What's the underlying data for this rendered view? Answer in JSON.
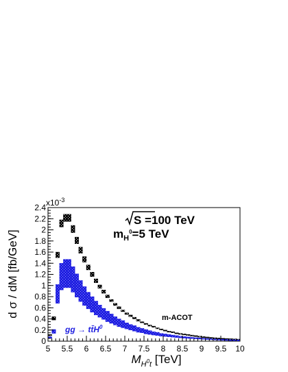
{
  "chart_data": {
    "type": "bar",
    "energy_label": "S =100 TeV",
    "mass_label_main": "m",
    "mass_label_sub": "H",
    "mass_label_sup": "0",
    "mass_label_rest": "=5 TeV",
    "exponent_label": "x10",
    "exponent_power": "-3",
    "ylabel": "d σ / dM [fb/GeV]",
    "xlabel_main": "M",
    "xlabel_sub": "H",
    "xlabel_subsup": "0",
    "xlabel_subt": "t",
    "xlabel_unit": " [TeV]",
    "xlim": [
      5,
      10
    ],
    "ylim": [
      0,
      2.4
    ],
    "y_scale_factor": 0.001,
    "x_ticks": [
      "5",
      "5.5",
      "6",
      "6.5",
      "7",
      "7.5",
      "8",
      "8.5",
      "9",
      "9.5",
      "10"
    ],
    "y_ticks": [
      "0",
      "0.2",
      "0.4",
      "0.6",
      "0.8",
      "1",
      "1.2",
      "1.4",
      "1.6",
      "1.8",
      "2",
      "2.2",
      "2.4"
    ],
    "bin_width": 0.1,
    "x": [
      5.05,
      5.15,
      5.25,
      5.35,
      5.45,
      5.55,
      5.65,
      5.75,
      5.85,
      5.95,
      6.05,
      6.15,
      6.25,
      6.35,
      6.45,
      6.55,
      6.65,
      6.75,
      6.85,
      6.95,
      7.05,
      7.15,
      7.25,
      7.35,
      7.45,
      7.55,
      7.65,
      7.75,
      7.85,
      7.95,
      8.05,
      8.15,
      8.25,
      8.35,
      8.45,
      8.55,
      8.65,
      8.75,
      8.85,
      8.95,
      9.05,
      9.15,
      9.25,
      9.35,
      9.45,
      9.55,
      9.65,
      9.75,
      9.85,
      9.95
    ],
    "series": [
      {
        "name": "m-ACOT",
        "color": "#000000",
        "low": [
          0.1,
          0.38,
          1.5,
          2.05,
          2.15,
          2.15,
          1.95,
          1.75,
          1.58,
          1.42,
          1.28,
          1.16,
          1.05,
          0.95,
          0.86,
          0.78,
          0.71,
          0.64,
          0.58,
          0.53,
          0.48,
          0.44,
          0.4,
          0.36,
          0.33,
          0.3,
          0.27,
          0.25,
          0.23,
          0.21,
          0.19,
          0.17,
          0.16,
          0.14,
          0.13,
          0.12,
          0.11,
          0.1,
          0.09,
          0.08,
          0.075,
          0.068,
          0.062,
          0.057,
          0.052,
          0.048,
          0.044,
          0.04,
          0.037,
          0.034
        ],
        "high": [
          0.12,
          0.44,
          1.6,
          2.18,
          2.28,
          2.28,
          2.08,
          1.87,
          1.69,
          1.52,
          1.37,
          1.24,
          1.12,
          1.01,
          0.92,
          0.83,
          0.75,
          0.68,
          0.62,
          0.56,
          0.51,
          0.47,
          0.43,
          0.39,
          0.35,
          0.32,
          0.29,
          0.27,
          0.24,
          0.22,
          0.2,
          0.18,
          0.17,
          0.15,
          0.14,
          0.13,
          0.12,
          0.11,
          0.1,
          0.09,
          0.082,
          0.075,
          0.068,
          0.062,
          0.057,
          0.052,
          0.048,
          0.044,
          0.04,
          0.037
        ]
      },
      {
        "name": "gg → tt̄H⁰",
        "color": "#1f1fe0",
        "low": [
          0.05,
          0.14,
          0.68,
          0.92,
          0.96,
          0.96,
          0.88,
          0.79,
          0.71,
          0.64,
          0.58,
          0.52,
          0.47,
          0.43,
          0.39,
          0.35,
          0.32,
          0.29,
          0.26,
          0.24,
          0.22,
          0.2,
          0.18,
          0.16,
          0.15,
          0.13,
          0.12,
          0.11,
          0.1,
          0.09,
          0.085,
          0.078,
          0.071,
          0.065,
          0.059,
          0.054,
          0.049,
          0.045,
          0.041,
          0.037,
          0.034,
          0.031,
          0.028,
          0.026,
          0.024,
          0.022,
          0.02,
          0.018,
          0.017,
          0.015
        ],
        "high": [
          0.08,
          0.21,
          1.02,
          1.4,
          1.47,
          1.47,
          1.34,
          1.21,
          1.09,
          0.98,
          0.88,
          0.8,
          0.72,
          0.65,
          0.59,
          0.54,
          0.49,
          0.44,
          0.4,
          0.37,
          0.33,
          0.3,
          0.28,
          0.25,
          0.23,
          0.21,
          0.19,
          0.17,
          0.16,
          0.14,
          0.13,
          0.12,
          0.11,
          0.1,
          0.09,
          0.083,
          0.076,
          0.069,
          0.063,
          0.058,
          0.053,
          0.048,
          0.044,
          0.04,
          0.037,
          0.034,
          0.031,
          0.028,
          0.026,
          0.024
        ]
      }
    ],
    "annotations": {
      "m_acot": "m-ACOT",
      "gg_main": "gg → tt̄H",
      "gg_sup": "0"
    }
  }
}
